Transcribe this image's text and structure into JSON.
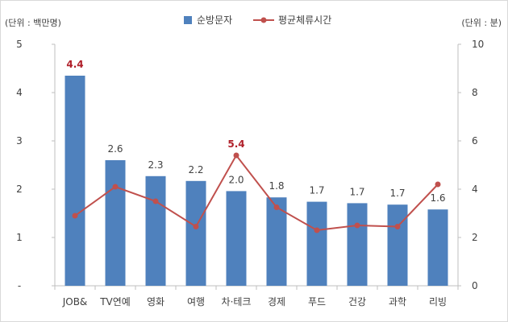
{
  "chart_data": {
    "type": "bar",
    "categories": [
      "JOB&",
      "TV연예",
      "영화",
      "여행",
      "차·테크",
      "경제",
      "푸드",
      "건강",
      "과학",
      "리빙"
    ],
    "series": [
      {
        "name": "순방문자",
        "kind": "bar",
        "axis": "left",
        "color": "#4f81bd",
        "values": [
          4.35,
          2.6,
          2.27,
          2.17,
          1.96,
          1.83,
          1.74,
          1.71,
          1.68,
          1.58
        ],
        "labels": [
          "4.4",
          "2.6",
          "2.3",
          "2.2",
          "2.0",
          "1.8",
          "1.7",
          "1.7",
          "1.7",
          "1.6"
        ],
        "highlight_color": "#b0202a",
        "highlight_indices": [
          0
        ]
      },
      {
        "name": "평균체류시간",
        "kind": "line",
        "axis": "right",
        "color": "#c0504d",
        "values": [
          2.9,
          4.1,
          3.5,
          2.45,
          5.4,
          3.25,
          2.3,
          2.5,
          2.45,
          4.2
        ],
        "labels": [
          "",
          "",
          "",
          "",
          "5.4",
          "",
          "",
          "",
          "",
          ""
        ],
        "highlight_color": "#b0202a"
      }
    ],
    "left_axis": {
      "unit_label": "(단위 :  백만명)",
      "ylim": [
        0,
        5
      ],
      "ticks": [
        0,
        1,
        2,
        3,
        4,
        5
      ],
      "tick_labels": [
        "-",
        "1",
        "2",
        "3",
        "4",
        "5"
      ]
    },
    "right_axis": {
      "unit_label": "(단위 : 분)",
      "ylim": [
        0,
        10
      ],
      "ticks": [
        0,
        2,
        4,
        6,
        8,
        10
      ],
      "tick_labels": [
        "0",
        "2",
        "4",
        "6",
        "8",
        "10"
      ]
    },
    "legend_position": "top-center",
    "grid": false
  }
}
